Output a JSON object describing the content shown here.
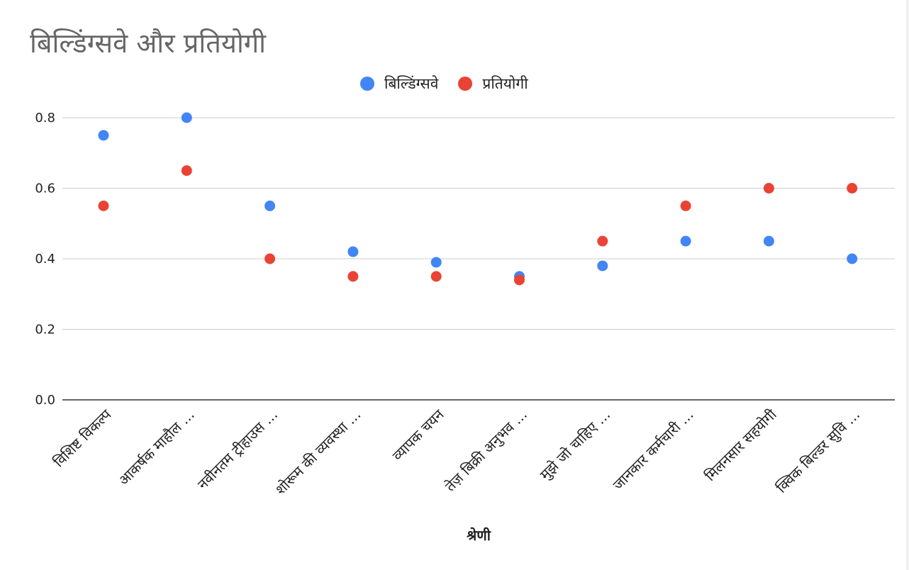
{
  "chart_data": {
    "type": "scatter",
    "title": "बिल्डिंग्सवे और प्रतियोगी",
    "xlabel": "श्रेणी",
    "ylabel": "",
    "ylim": [
      0,
      0.8
    ],
    "yticks": [
      "0.0",
      "0.2",
      "0.4",
      "0.6",
      "0.8"
    ],
    "ytick_values": [
      0,
      0.2,
      0.4,
      0.6,
      0.8
    ],
    "grid": true,
    "legend_position": "top",
    "categories": [
      "विशिष्ट विकल्प",
      "आकर्षक माहौल ...",
      "नवीनतम ट्रीहाउस ...",
      "शोरूम की व्यवस्था ...",
      "व्यापक चयन",
      "तेज़ बिक्री अनुभव ...",
      "मुझे जो चाहिए ...",
      "जानकार कर्मचारी ...",
      "मिलनसार सहयोगी",
      "क्विक बिल्डर सुवि ..."
    ],
    "series": [
      {
        "name": "बिल्डिंग्सवे",
        "color": "#4285F4",
        "values": [
          0.75,
          0.8,
          0.55,
          0.42,
          0.39,
          0.35,
          0.38,
          0.45,
          0.45,
          0.4
        ]
      },
      {
        "name": "प्रतियोगी",
        "color": "#EA4335",
        "values": [
          0.55,
          0.65,
          0.4,
          0.35,
          0.35,
          0.34,
          0.45,
          0.55,
          0.6,
          0.6
        ]
      }
    ]
  }
}
